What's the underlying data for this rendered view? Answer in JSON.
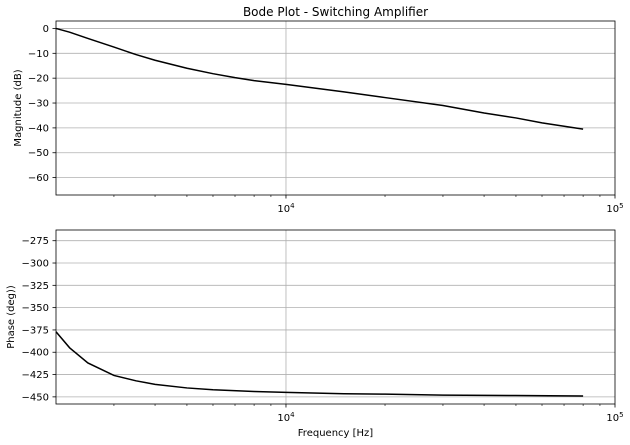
{
  "chart_data": [
    {
      "type": "line",
      "title": "Bode Plot - Switching Amplifier",
      "xlabel": "",
      "ylabel": "Magnitude (dB)",
      "xscale": "log",
      "xlim": [
        2000,
        100000
      ],
      "ylim": [
        -67,
        3
      ],
      "yticks": [
        0,
        -10,
        -20,
        -30,
        -40,
        -50,
        -60
      ],
      "ytick_labels": [
        "0",
        "−10",
        "−20",
        "−30",
        "−40",
        "−50",
        "−60"
      ],
      "xticks": [
        10000,
        100000
      ],
      "xtick_labels": [
        "10^4",
        "10^5"
      ],
      "grid": true,
      "x": [
        2000,
        2200,
        2500,
        3000,
        3500,
        4000,
        5000,
        6000,
        7000,
        8000,
        10000,
        15000,
        20000,
        30000,
        40000,
        50000,
        60000,
        80000
      ],
      "y": [
        0,
        -1.5,
        -4,
        -7.5,
        -10.5,
        -12.8,
        -16,
        -18.2,
        -19.8,
        -21,
        -22.5,
        -25.5,
        -27.8,
        -31,
        -34,
        -36,
        -38,
        -40.5
      ]
    },
    {
      "type": "line",
      "title": "",
      "xlabel": "Frequency [Hz]",
      "ylabel": "Phase (deg))",
      "xscale": "log",
      "xlim": [
        2000,
        100000
      ],
      "ylim": [
        -458,
        -263
      ],
      "yticks": [
        -275,
        -300,
        -325,
        -350,
        -375,
        -400,
        -425,
        -450
      ],
      "ytick_labels": [
        "−275",
        "−300",
        "−325",
        "−350",
        "−375",
        "−400",
        "−425",
        "−450"
      ],
      "xticks": [
        10000,
        100000
      ],
      "xtick_labels": [
        "10^4",
        "10^5"
      ],
      "grid": true,
      "x": [
        2000,
        2200,
        2500,
        3000,
        3500,
        4000,
        5000,
        6000,
        8000,
        10000,
        15000,
        20000,
        30000,
        50000,
        80000
      ],
      "y": [
        -377,
        -395,
        -412,
        -426,
        -432,
        -436,
        -440,
        -442,
        -444,
        -445,
        -446.5,
        -447,
        -448,
        -448.5,
        -449
      ]
    }
  ]
}
